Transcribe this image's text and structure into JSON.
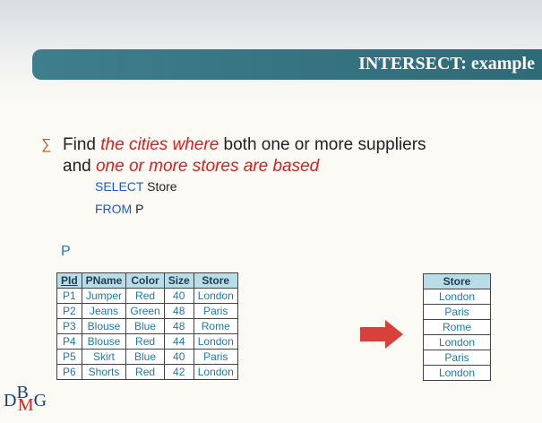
{
  "title": "INTERSECT: example",
  "bullet": [
    "Find",
    "the cities where",
    "both one or more suppliers",
    "and",
    "one or more stores are based"
  ],
  "code": [
    {
      "keyword": "SELECT",
      "rest": "Store"
    },
    {
      "keyword": "FROM",
      "rest": "P"
    }
  ],
  "table_name": "P",
  "table": {
    "header": [
      "PId",
      "PName",
      "Color",
      "Size",
      "Store"
    ],
    "rows": [
      [
        "P1",
        "Jumper",
        "Red",
        "40",
        "London"
      ],
      [
        "P2",
        "Jeans",
        "Green",
        "48",
        "Paris"
      ],
      [
        "P3",
        "Blouse",
        "Blue",
        "48",
        "Rome"
      ],
      [
        "P4",
        "Blouse",
        "Red",
        "44",
        "London"
      ],
      [
        "P5",
        "Skirt",
        "Blue",
        "40",
        "Paris"
      ],
      [
        "P6",
        "Shorts",
        "Red",
        "42",
        "London"
      ]
    ]
  },
  "result": {
    "header": [
      "Store"
    ],
    "rows": [
      [
        "London"
      ],
      [
        "Paris"
      ],
      [
        "Rome"
      ],
      [
        "London"
      ],
      [
        "Paris"
      ],
      [
        "London"
      ]
    ]
  },
  "logo": [
    "D",
    "B",
    "M",
    "G"
  ]
}
